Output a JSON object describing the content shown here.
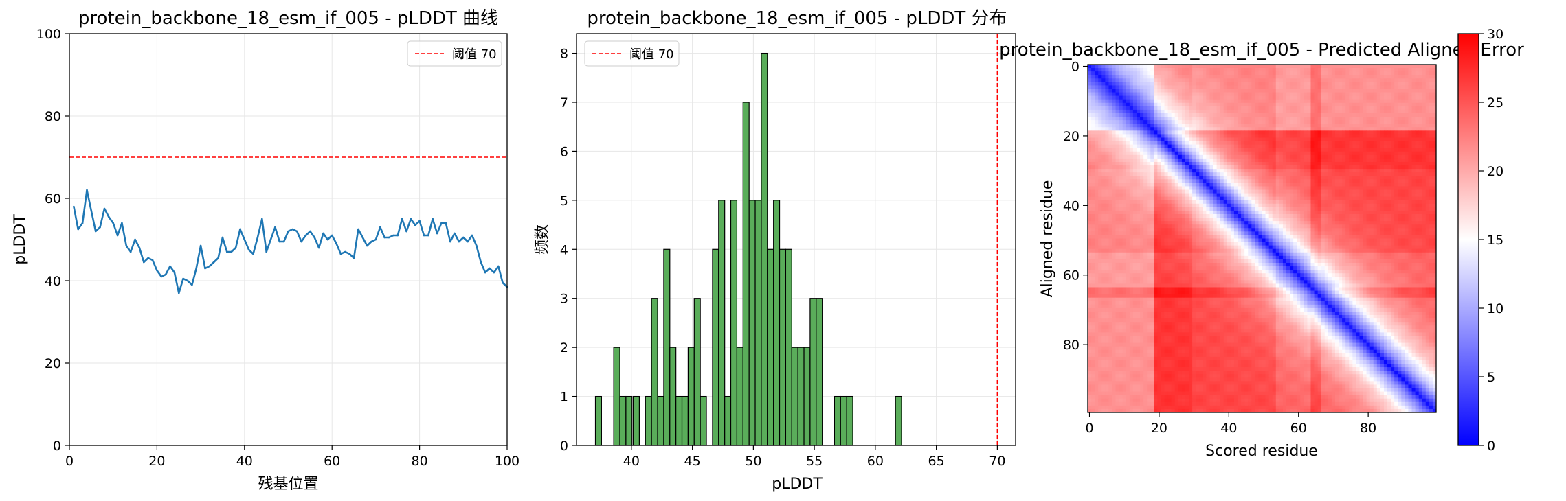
{
  "figure": {
    "background": "#ffffff"
  },
  "chart_data": [
    {
      "type": "line",
      "title": "protein_backbone_18_esm_if_005 - pLDDT 曲线",
      "xlabel": "残基位置",
      "ylabel": "pLDDT",
      "xlim": [
        0,
        100
      ],
      "ylim": [
        0,
        100
      ],
      "xticks": [
        "0",
        "20",
        "40",
        "60",
        "80",
        "100"
      ],
      "yticks": [
        "0",
        "20",
        "40",
        "60",
        "80",
        "100"
      ],
      "grid": true,
      "legend": {
        "position": "top-right",
        "entries": [
          "阈值 70"
        ]
      },
      "threshold": {
        "value": 70,
        "label": "阈值 70",
        "color": "#ff0000",
        "style": "dashed",
        "orientation": "horizontal"
      },
      "series": [
        {
          "color": "#1f77b4",
          "x": [
            1,
            2,
            3,
            4,
            5,
            6,
            7,
            8,
            9,
            10,
            11,
            12,
            13,
            14,
            15,
            16,
            17,
            18,
            19,
            20,
            21,
            22,
            23,
            24,
            25,
            26,
            27,
            28,
            29,
            30,
            31,
            32,
            33,
            34,
            35,
            36,
            37,
            38,
            39,
            40,
            41,
            42,
            43,
            44,
            45,
            46,
            47,
            48,
            49,
            50,
            51,
            52,
            53,
            54,
            55,
            56,
            57,
            58,
            59,
            60,
            61,
            62,
            63,
            64,
            65,
            66,
            67,
            68,
            69,
            70,
            71,
            72,
            73,
            74,
            75,
            76,
            77,
            78,
            79,
            80,
            81,
            82,
            83,
            84,
            85,
            86,
            87,
            88,
            89,
            90,
            91,
            92,
            93,
            94,
            95,
            96,
            97,
            98,
            99,
            100
          ],
          "values": [
            58,
            52.5,
            54,
            62,
            57,
            52,
            53,
            57.5,
            55.5,
            54,
            51,
            54,
            48.5,
            47,
            50,
            48,
            44.5,
            45.5,
            45,
            42.5,
            41,
            41.5,
            43.5,
            42,
            37,
            40.5,
            40,
            39,
            43,
            48.5,
            43,
            43.5,
            44.5,
            45.5,
            50.5,
            47,
            47,
            48,
            52.5,
            50,
            47.5,
            46.5,
            50.5,
            55,
            47,
            50,
            53,
            49.5,
            49.5,
            52,
            52.5,
            52,
            49.5,
            51,
            52,
            50.5,
            48,
            51.5,
            50,
            51,
            49,
            46.5,
            47,
            46.5,
            45.5,
            52.5,
            50.5,
            48.5,
            49.5,
            50,
            53,
            50.5,
            50.5,
            51,
            51,
            55,
            52,
            55,
            53.5,
            54.5,
            51,
            51,
            55,
            51.5,
            54,
            54,
            49.5,
            51.5,
            49.5,
            50.5,
            49.5,
            51,
            48.5,
            44.5,
            42,
            43,
            42,
            43.5,
            39.5,
            38.5
          ]
        }
      ]
    },
    {
      "type": "bar",
      "title": "protein_backbone_18_esm_if_005 - pLDDT 分布",
      "xlabel": "pLDDT",
      "ylabel": "频数",
      "xlim": [
        35.5,
        71.5
      ],
      "ylim": [
        0,
        8.4
      ],
      "xticks": [
        "40",
        "45",
        "50",
        "55",
        "60",
        "65",
        "70"
      ],
      "yticks": [
        "0",
        "1",
        "2",
        "3",
        "4",
        "5",
        "6",
        "7",
        "8"
      ],
      "grid": true,
      "legend": {
        "position": "top-left",
        "entries": [
          "阈值 70"
        ]
      },
      "threshold": {
        "value": 70,
        "label": "阈值 70",
        "color": "#ff0000",
        "style": "dashed",
        "orientation": "vertical"
      },
      "bar_color": "#5aad5a",
      "bins": [
        {
          "x": 37.3,
          "count": 1
        },
        {
          "x": 38.8,
          "count": 2
        },
        {
          "x": 39.3,
          "count": 1
        },
        {
          "x": 39.8,
          "count": 1
        },
        {
          "x": 40.4,
          "count": 1
        },
        {
          "x": 41.4,
          "count": 1
        },
        {
          "x": 41.9,
          "count": 3
        },
        {
          "x": 42.4,
          "count": 1
        },
        {
          "x": 42.9,
          "count": 4
        },
        {
          "x": 43.4,
          "count": 2
        },
        {
          "x": 43.9,
          "count": 1
        },
        {
          "x": 44.4,
          "count": 1
        },
        {
          "x": 44.9,
          "count": 2
        },
        {
          "x": 45.4,
          "count": 3
        },
        {
          "x": 45.9,
          "count": 1
        },
        {
          "x": 46.9,
          "count": 4
        },
        {
          "x": 47.4,
          "count": 5
        },
        {
          "x": 47.9,
          "count": 1
        },
        {
          "x": 48.4,
          "count": 5
        },
        {
          "x": 48.9,
          "count": 2
        },
        {
          "x": 49.4,
          "count": 7
        },
        {
          "x": 49.9,
          "count": 5
        },
        {
          "x": 50.4,
          "count": 5
        },
        {
          "x": 50.9,
          "count": 8
        },
        {
          "x": 51.4,
          "count": 4
        },
        {
          "x": 51.9,
          "count": 5
        },
        {
          "x": 52.4,
          "count": 4
        },
        {
          "x": 52.9,
          "count": 4
        },
        {
          "x": 53.4,
          "count": 2
        },
        {
          "x": 53.9,
          "count": 2
        },
        {
          "x": 54.4,
          "count": 2
        },
        {
          "x": 54.9,
          "count": 3
        },
        {
          "x": 55.4,
          "count": 3
        },
        {
          "x": 56.9,
          "count": 1
        },
        {
          "x": 57.4,
          "count": 1
        },
        {
          "x": 57.9,
          "count": 1
        },
        {
          "x": 61.9,
          "count": 1
        }
      ],
      "bin_width": 0.5
    },
    {
      "type": "heatmap",
      "title": "protein_backbone_18_esm_if_005 - Predicted Aligned Error",
      "xlabel": "Scored residue",
      "ylabel": "Aligned residue",
      "xlim": [
        0,
        100
      ],
      "ylim": [
        100,
        0
      ],
      "xticks": [
        "0",
        "20",
        "40",
        "60",
        "80"
      ],
      "yticks": [
        "0",
        "20",
        "40",
        "60",
        "80"
      ],
      "colormap": "bwr",
      "colors": {
        "low": "#0000ff",
        "mid": "#ffffff",
        "high": "#ff0000"
      },
      "vmin": 0,
      "vmax": 30,
      "colorbar_ticks": [
        "0",
        "5",
        "10",
        "15",
        "20",
        "25",
        "30"
      ],
      "bands": [
        {
          "from": 0,
          "to": 19,
          "ceiling": 18
        },
        {
          "from": 19,
          "to": 30,
          "ceiling": 29
        },
        {
          "from": 30,
          "to": 54,
          "ceiling": 27
        },
        {
          "from": 54,
          "to": 64,
          "ceiling": 24
        },
        {
          "from": 64,
          "to": 67,
          "ceiling": 29
        },
        {
          "from": 67,
          "to": 100,
          "ceiling": 25
        }
      ]
    }
  ]
}
